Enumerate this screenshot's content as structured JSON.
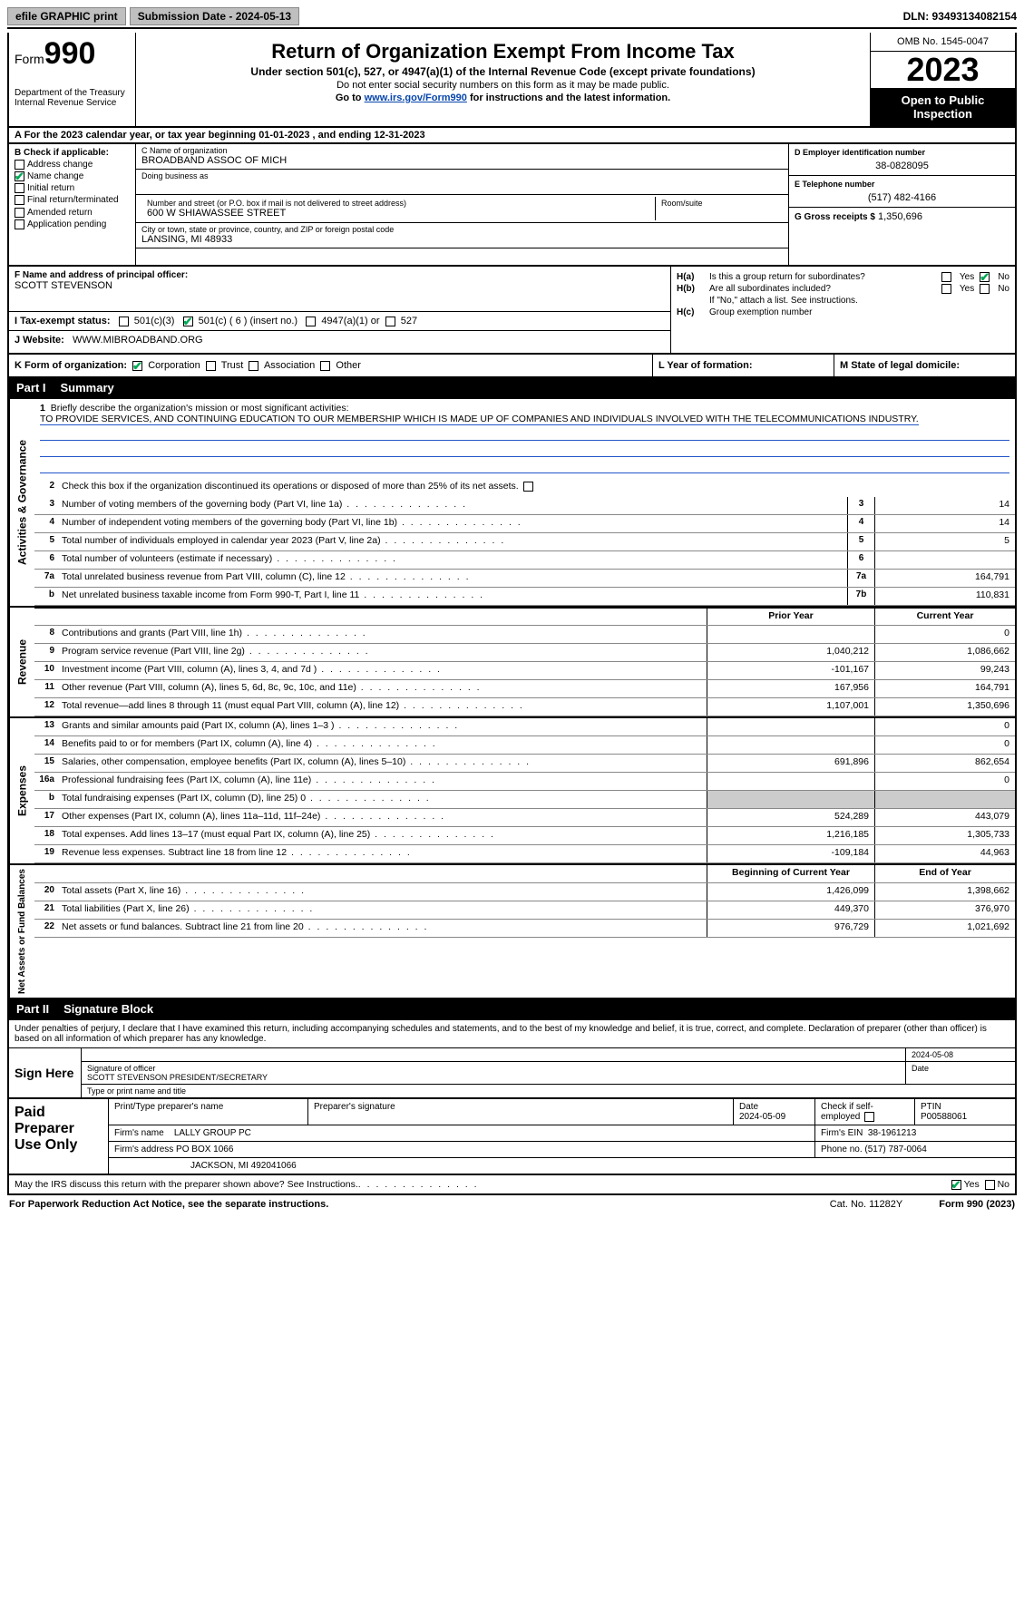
{
  "topbar": {
    "efile": "efile GRAPHIC print",
    "submission": "Submission Date - 2024-05-13",
    "dln": "DLN: 93493134082154"
  },
  "header": {
    "form_label": "Form",
    "form_num": "990",
    "title": "Return of Organization Exempt From Income Tax",
    "sub1": "Under section 501(c), 527, or 4947(a)(1) of the Internal Revenue Code (except private foundations)",
    "sub2": "Do not enter social security numbers on this form as it may be made public.",
    "sub3_pre": "Go to ",
    "sub3_link": "www.irs.gov/Form990",
    "sub3_post": " for instructions and the latest information.",
    "dept": "Department of the Treasury\nInternal Revenue Service",
    "omb": "OMB No. 1545-0047",
    "year": "2023",
    "inspect": "Open to Public Inspection"
  },
  "row_a": "A For the 2023 calendar year, or tax year beginning 01-01-2023    , and ending 12-31-2023",
  "box_b": {
    "label": "B Check if applicable:",
    "items": [
      {
        "label": "Address change",
        "checked": false
      },
      {
        "label": "Name change",
        "checked": true
      },
      {
        "label": "Initial return",
        "checked": false
      },
      {
        "label": "Final return/terminated",
        "checked": false
      },
      {
        "label": "Amended return",
        "checked": false
      },
      {
        "label": "Application pending",
        "checked": false
      }
    ]
  },
  "box_c": {
    "name_label": "C Name of organization",
    "name": "BROADBAND ASSOC OF MICH",
    "dba_label": "Doing business as",
    "dba": "",
    "street_label": "Number and street (or P.O. box if mail is not delivered to street address)",
    "street": "600 W SHIAWASSEE STREET",
    "room_label": "Room/suite",
    "room": "",
    "city_label": "City or town, state or province, country, and ZIP or foreign postal code",
    "city": "LANSING, MI  48933"
  },
  "box_d": {
    "ein_label": "D Employer identification number",
    "ein": "38-0828095",
    "phone_label": "E Telephone number",
    "phone": "(517) 482-4166",
    "gross_label": "G Gross receipts $",
    "gross": "1,350,696"
  },
  "box_f": {
    "label": "F  Name and address of principal officer:",
    "name": "SCOTT STEVENSON"
  },
  "box_h": {
    "a_label": "H(a)",
    "a_text": "Is this a group return for subordinates?",
    "a_yes": false,
    "a_no": true,
    "b_label": "H(b)",
    "b_text": "Are all subordinates included?",
    "b_note": "If \"No,\" attach a list. See instructions.",
    "c_label": "H(c)",
    "c_text": "Group exemption number"
  },
  "row_i": {
    "label": "I     Tax-exempt status:",
    "c3": "501(c)(3)",
    "c_other": "501(c) ( 6 ) (insert no.)",
    "c_other_checked": true,
    "a4947": "4947(a)(1) or",
    "s527": "527"
  },
  "row_j": {
    "label": "J    Website:",
    "val": "WWW.MIBROADBAND.ORG"
  },
  "row_k": {
    "label": "K Form of organization:",
    "corp": "Corporation",
    "corp_checked": true,
    "trust": "Trust",
    "assoc": "Association",
    "other": "Other"
  },
  "row_l": {
    "label": "L Year of formation:",
    "val": ""
  },
  "row_m": {
    "label": "M State of legal domicile:",
    "val": ""
  },
  "part1": {
    "num": "Part I",
    "title": "Summary"
  },
  "section_ag": {
    "title": "Activities & Governance",
    "line1_label": "1",
    "line1_text": "Briefly describe the organization's mission or most significant activities:",
    "line1_val": "TO PROVIDE SERVICES, AND CONTINUING EDUCATION TO OUR MEMBERSHIP WHICH IS MADE UP OF COMPANIES AND INDIVIDUALS INVOLVED WITH THE TELECOMMUNICATIONS INDUSTRY.",
    "line2_num": "2",
    "line2_text": "Check this box         if the organization discontinued its operations or disposed of more than 25% of its net assets.",
    "rows": [
      {
        "num": "3",
        "text": "Number of voting members of the governing body (Part VI, line 1a)",
        "box": "3",
        "val": "14"
      },
      {
        "num": "4",
        "text": "Number of independent voting members of the governing body (Part VI, line 1b)",
        "box": "4",
        "val": "14"
      },
      {
        "num": "5",
        "text": "Total number of individuals employed in calendar year 2023 (Part V, line 2a)",
        "box": "5",
        "val": "5"
      },
      {
        "num": "6",
        "text": "Total number of volunteers (estimate if necessary)",
        "box": "6",
        "val": ""
      },
      {
        "num": "7a",
        "text": "Total unrelated business revenue from Part VIII, column (C), line 12",
        "box": "7a",
        "val": "164,791"
      },
      {
        "num": "b",
        "text": "Net unrelated business taxable income from Form 990-T, Part I, line 11",
        "box": "7b",
        "val": "110,831"
      }
    ]
  },
  "section_rev": {
    "title": "Revenue",
    "hdr_prior": "Prior Year",
    "hdr_curr": "Current Year",
    "rows": [
      {
        "num": "8",
        "text": "Contributions and grants (Part VIII, line 1h)",
        "prior": "",
        "curr": "0"
      },
      {
        "num": "9",
        "text": "Program service revenue (Part VIII, line 2g)",
        "prior": "1,040,212",
        "curr": "1,086,662"
      },
      {
        "num": "10",
        "text": "Investment income (Part VIII, column (A), lines 3, 4, and 7d )",
        "prior": "-101,167",
        "curr": "99,243"
      },
      {
        "num": "11",
        "text": "Other revenue (Part VIII, column (A), lines 5, 6d, 8c, 9c, 10c, and 11e)",
        "prior": "167,956",
        "curr": "164,791"
      },
      {
        "num": "12",
        "text": "Total revenue—add lines 8 through 11 (must equal Part VIII, column (A), line 12)",
        "prior": "1,107,001",
        "curr": "1,350,696"
      }
    ]
  },
  "section_exp": {
    "title": "Expenses",
    "rows": [
      {
        "num": "13",
        "text": "Grants and similar amounts paid (Part IX, column (A), lines 1–3 )",
        "prior": "",
        "curr": "0"
      },
      {
        "num": "14",
        "text": "Benefits paid to or for members (Part IX, column (A), line 4)",
        "prior": "",
        "curr": "0"
      },
      {
        "num": "15",
        "text": "Salaries, other compensation, employee benefits (Part IX, column (A), lines 5–10)",
        "prior": "691,896",
        "curr": "862,654"
      },
      {
        "num": "16a",
        "text": "Professional fundraising fees (Part IX, column (A), line 11e)",
        "prior": "",
        "curr": "0"
      },
      {
        "num": "b",
        "text": "Total fundraising expenses (Part IX, column (D), line 25) 0",
        "prior": "GREY",
        "curr": "GREY"
      },
      {
        "num": "17",
        "text": "Other expenses (Part IX, column (A), lines 11a–11d, 11f–24e)",
        "prior": "524,289",
        "curr": "443,079"
      },
      {
        "num": "18",
        "text": "Total expenses. Add lines 13–17 (must equal Part IX, column (A), line 25)",
        "prior": "1,216,185",
        "curr": "1,305,733"
      },
      {
        "num": "19",
        "text": "Revenue less expenses. Subtract line 18 from line 12",
        "prior": "-109,184",
        "curr": "44,963"
      }
    ]
  },
  "section_na": {
    "title": "Net Assets or Fund Balances",
    "hdr_prior": "Beginning of Current Year",
    "hdr_curr": "End of Year",
    "rows": [
      {
        "num": "20",
        "text": "Total assets (Part X, line 16)",
        "prior": "1,426,099",
        "curr": "1,398,662"
      },
      {
        "num": "21",
        "text": "Total liabilities (Part X, line 26)",
        "prior": "449,370",
        "curr": "376,970"
      },
      {
        "num": "22",
        "text": "Net assets or fund balances. Subtract line 21 from line 20",
        "prior": "976,729",
        "curr": "1,021,692"
      }
    ]
  },
  "part2": {
    "num": "Part II",
    "title": "Signature Block"
  },
  "sig": {
    "preamble": "Under penalties of perjury, I declare that I have examined this return, including accompanying schedules and statements, and to the best of my knowledge and belief, it is true, correct, and complete. Declaration of preparer (other than officer) is based on all information of which preparer has any knowledge.",
    "sign_here": "Sign Here",
    "sig_officer_label": "Signature of officer",
    "date_label": "Date",
    "date1": "2024-05-08",
    "officer_name": "SCOTT STEVENSON  PRESIDENT/SECRETARY",
    "type_label": "Type or print name and title"
  },
  "paid": {
    "title": "Paid Preparer Use Only",
    "print_label": "Print/Type preparer's name",
    "print_val": "",
    "sig_label": "Preparer's signature",
    "date_label": "Date",
    "date": "2024-05-09",
    "check_label": "Check         if self-employed",
    "ptin_label": "PTIN",
    "ptin": "P00588061",
    "firm_name_label": "Firm's name",
    "firm_name": "LALLY GROUP PC",
    "firm_ein_label": "Firm's EIN",
    "firm_ein": "38-1961213",
    "firm_addr_label": "Firm's address",
    "firm_addr1": "PO BOX 1066",
    "firm_addr2": "JACKSON, MI  492041066",
    "phone_label": "Phone no.",
    "phone": "(517) 787-0064"
  },
  "discuss": {
    "text": "May the IRS discuss this return with the preparer shown above? See Instructions.",
    "yes": true,
    "no": false
  },
  "footer": {
    "left": "For Paperwork Reduction Act Notice, see the separate instructions.",
    "mid": "Cat. No. 11282Y",
    "right": "Form 990 (2023)"
  }
}
